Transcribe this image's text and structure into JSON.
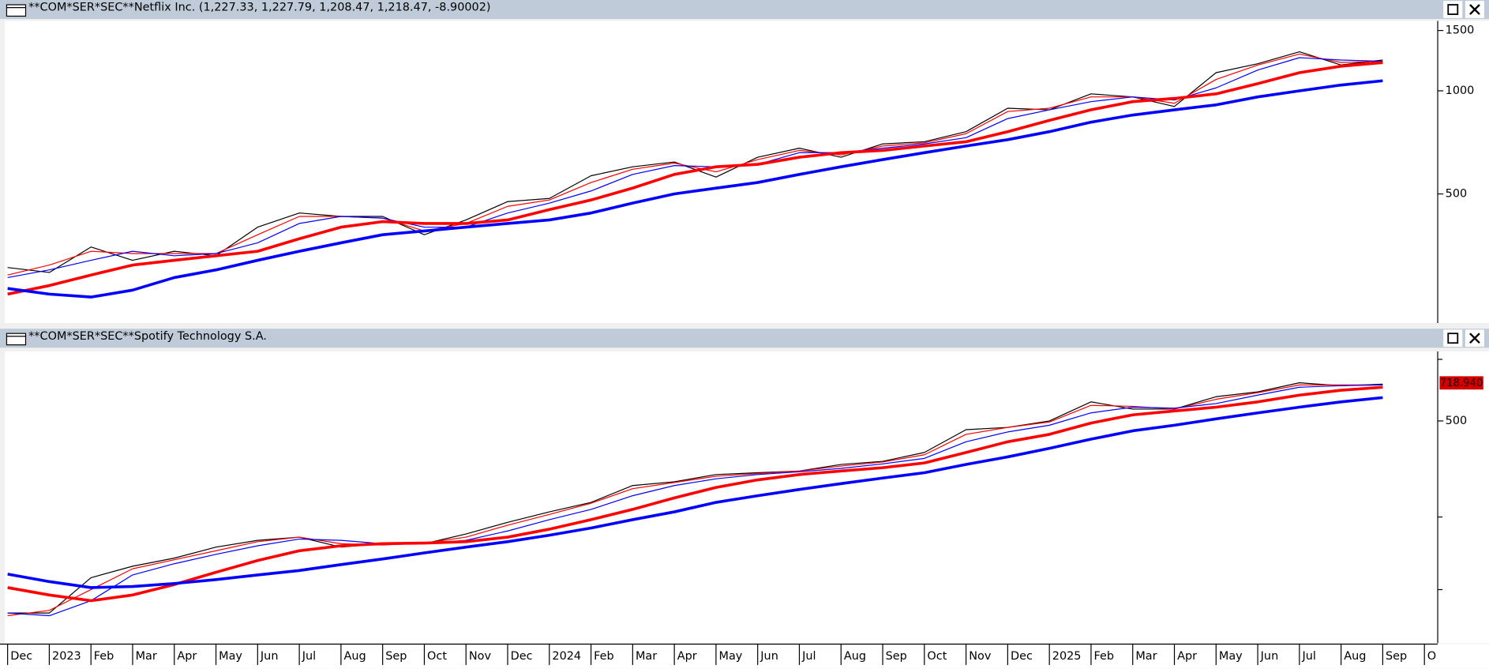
{
  "x_axis": {
    "categories": [
      "Dec",
      "2023",
      "Feb",
      "Mar",
      "Apr",
      "May",
      "Jun",
      "Jul",
      "Aug",
      "Sep",
      "Oct",
      "Nov",
      "Dec",
      "2024",
      "Feb",
      "Mar",
      "Apr",
      "May",
      "Jun",
      "Jul",
      "Aug",
      "Sep",
      "Oct",
      "Nov",
      "Dec",
      "2025",
      "Feb",
      "Mar",
      "Apr",
      "May",
      "Jun",
      "Jul",
      "Aug",
      "Sep",
      "O"
    ]
  },
  "chart_data": [
    {
      "type": "line",
      "title": "**COM*SER*SEC**Netflix  Inc. (1,227.33, 1,227.79, 1,208.47, 1,218.47, -8.90002)",
      "log_scale": true,
      "ylim": [
        210,
        1600
      ],
      "yticks": [
        500,
        1000,
        1500
      ],
      "series": [
        {
          "color": "#000000",
          "width": 1,
          "values": [
            305,
            295,
            350,
            320,
            340,
            330,
            400,
            440,
            430,
            430,
            380,
            420,
            475,
            485,
            565,
            600,
            620,
            560,
            640,
            680,
            640,
            700,
            710,
            760,
            890,
            880,
            980,
            960,
            900,
            1130,
            1200,
            1300,
            1190,
            1230,
            null
          ]
        },
        {
          "color": "#ff0000",
          "width": 1,
          "values": [
            290,
            310,
            340,
            335,
            335,
            335,
            380,
            430,
            430,
            425,
            390,
            410,
            460,
            480,
            540,
            590,
            615,
            580,
            630,
            670,
            650,
            690,
            705,
            750,
            870,
            890,
            960,
            960,
            920,
            1080,
            1190,
            1280,
            1210,
            1220,
            null
          ]
        },
        {
          "color": "#0000ff",
          "width": 1,
          "values": [
            285,
            300,
            320,
            340,
            330,
            335,
            360,
            410,
            430,
            425,
            400,
            400,
            440,
            470,
            510,
            570,
            605,
            600,
            610,
            660,
            660,
            680,
            700,
            730,
            830,
            880,
            930,
            960,
            940,
            1020,
            1150,
            1250,
            1230,
            1220,
            null
          ]
        },
        {
          "color": "#ff0000",
          "width": 3,
          "values": [
            255,
            270,
            290,
            310,
            320,
            330,
            340,
            370,
            400,
            415,
            410,
            410,
            420,
            450,
            480,
            520,
            570,
            600,
            610,
            640,
            660,
            670,
            690,
            710,
            760,
            820,
            880,
            930,
            950,
            980,
            1050,
            1130,
            1180,
            1210,
            null
          ]
        },
        {
          "color": "#0000ff",
          "width": 3,
          "values": [
            265,
            255,
            250,
            262,
            285,
            300,
            320,
            340,
            360,
            380,
            390,
            400,
            410,
            420,
            440,
            470,
            500,
            520,
            540,
            570,
            600,
            630,
            660,
            690,
            720,
            760,
            810,
            850,
            880,
            910,
            960,
            1000,
            1040,
            1070,
            null
          ]
        }
      ]
    },
    {
      "type": "line",
      "title": "**COM*SER*SEC**Spotify Technology S.A.",
      "log_scale": true,
      "ylim": [
        60,
        970
      ],
      "yticks": [
        500
      ],
      "minor_ticks": [
        100,
        200,
        900
      ],
      "price_label": {
        "value": 718.94,
        "label": "718.940"
      },
      "series": [
        {
          "color": "#000000",
          "width": 1,
          "values": [
            80,
            80,
            112,
            125,
            135,
            150,
            160,
            165,
            150,
            155,
            155,
            170,
            190,
            210,
            230,
            270,
            280,
            300,
            305,
            310,
            330,
            340,
            370,
            460,
            470,
            500,
            600,
            560,
            560,
            630,
            660,
            720,
            700,
            710,
            null
          ]
        },
        {
          "color": "#ff0000",
          "width": 1,
          "values": [
            78,
            82,
            100,
            122,
            133,
            145,
            158,
            165,
            155,
            153,
            156,
            165,
            185,
            205,
            228,
            262,
            278,
            295,
            303,
            310,
            325,
            338,
            362,
            440,
            470,
            495,
            580,
            575,
            560,
            615,
            655,
            705,
            705,
            705,
            null
          ]
        },
        {
          "color": "#0000ff",
          "width": 1,
          "values": [
            80,
            78,
            90,
            115,
            128,
            140,
            152,
            162,
            160,
            155,
            155,
            160,
            175,
            195,
            215,
            245,
            270,
            288,
            300,
            308,
            318,
            332,
            350,
            410,
            450,
            480,
            540,
            570,
            565,
            590,
            640,
            690,
            700,
            705,
            null
          ]
        },
        {
          "color": "#ff0000",
          "width": 3,
          "values": [
            102,
            95,
            90,
            95,
            105,
            118,
            132,
            145,
            152,
            155,
            156,
            158,
            165,
            178,
            195,
            215,
            240,
            265,
            285,
            300,
            310,
            320,
            335,
            370,
            410,
            440,
            490,
            530,
            550,
            570,
            600,
            640,
            670,
            690,
            null
          ]
        },
        {
          "color": "#0000ff",
          "width": 3,
          "values": [
            116,
            108,
            102,
            103,
            106,
            110,
            115,
            120,
            127,
            134,
            142,
            150,
            158,
            168,
            180,
            195,
            210,
            230,
            245,
            260,
            275,
            290,
            305,
            330,
            355,
            385,
            420,
            455,
            480,
            510,
            540,
            570,
            600,
            625,
            null
          ]
        }
      ]
    }
  ]
}
